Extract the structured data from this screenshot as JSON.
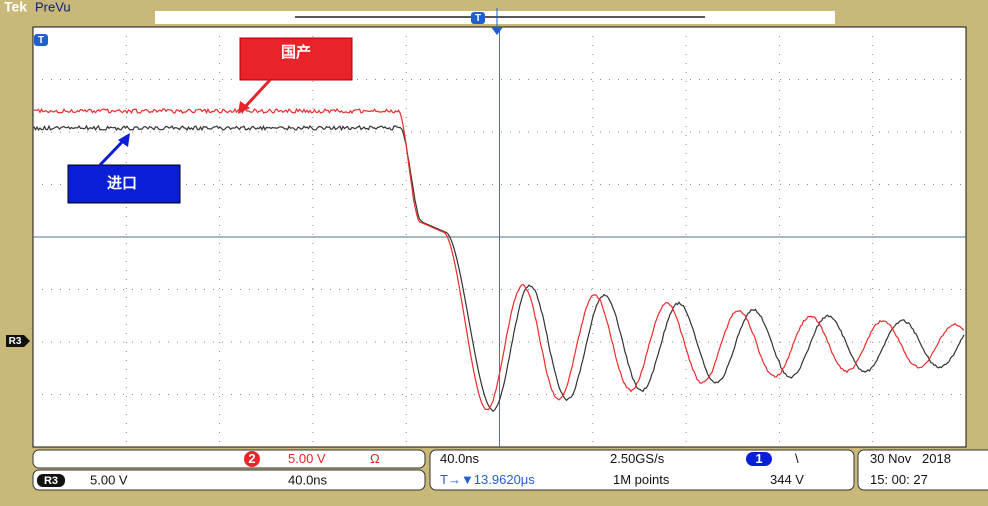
{
  "header": {
    "brand": "Tek",
    "mode": "PreVu",
    "trigger_marker": "T"
  },
  "screen": {
    "trigger_level_marker": "T",
    "reference_marker": "R3"
  },
  "annotations": [
    {
      "label": "国产",
      "color": "#e8242a"
    },
    {
      "label": "进口",
      "color": "#0a1ed8"
    }
  ],
  "status": {
    "channel2": {
      "number": "2",
      "scale": "5.00 V",
      "coupling": "Ω"
    },
    "reference": {
      "name": "R3",
      "scale": "5.00 V",
      "timebase": "40.0ns"
    },
    "timebase": "40.0ns",
    "sample_rate": "2.50GS/s",
    "trigger": {
      "channel": "1",
      "slope": "\\",
      "level": "344 V"
    },
    "position": "T→▼13.9620μs",
    "record_length": "1M points",
    "date": "30 Nov   2018",
    "time": "15: 00: 27"
  }
}
